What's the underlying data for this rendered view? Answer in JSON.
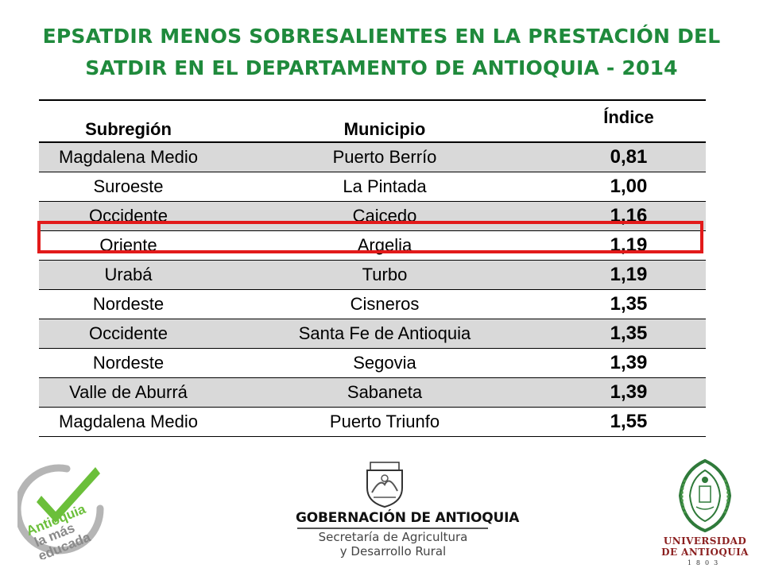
{
  "title": {
    "line1": "EPSATDIR MENOS SOBRESALIENTES EN LA PRESTACIÓN DEL",
    "line2": "SATDIR EN EL DEPARTAMENTO DE ANTIOQUIA - 2014"
  },
  "table": {
    "headers": {
      "subregion": "Subregión",
      "municipio": "Municipio",
      "indice": "Índice"
    },
    "rows": [
      {
        "subregion": "Magdalena Medio",
        "municipio": "Puerto Berrío",
        "indice": "0,81"
      },
      {
        "subregion": "Suroeste",
        "municipio": "La Pintada",
        "indice": "1,00"
      },
      {
        "subregion": "Occidente",
        "municipio": "Caicedo",
        "indice": "1,16"
      },
      {
        "subregion": "Oriente",
        "municipio": "Argelia",
        "indice": "1,19"
      },
      {
        "subregion": "Urabá",
        "municipio": "Turbo",
        "indice": "1,19"
      },
      {
        "subregion": "Nordeste",
        "municipio": "Cisneros",
        "indice": "1,35"
      },
      {
        "subregion": "Occidente",
        "municipio": "Santa Fe de Antioquia",
        "indice": "1,35"
      },
      {
        "subregion": "Nordeste",
        "municipio": "Segovia",
        "indice": "1,39"
      },
      {
        "subregion": "Valle de Aburrá",
        "municipio": "Sabaneta",
        "indice": "1,39"
      },
      {
        "subregion": "Magdalena Medio",
        "municipio": "Puerto Triunfo",
        "indice": "1,55"
      }
    ],
    "highlighted_row": "Argelia"
  },
  "logos": {
    "antioquia_educada": {
      "line1": "Antioquia",
      "line2": "la más",
      "line3": "educada"
    },
    "gobernacion": {
      "name": "GOBERNACIÓN DE ANTIOQUIA",
      "dept_line1": "Secretaría de Agricultura",
      "dept_line2": "y Desarrollo Rural"
    },
    "universidad": {
      "line1": "UNIVERSIDAD",
      "line2": "DE ANTIOQUIA",
      "year": "1803"
    }
  },
  "colors": {
    "title_green": "#1f8a3c",
    "row_shade": "#d9d9d9",
    "highlight_red": "#e21a1a",
    "udea_red": "#8b1f1f",
    "edu_green": "#6bbf3a"
  }
}
